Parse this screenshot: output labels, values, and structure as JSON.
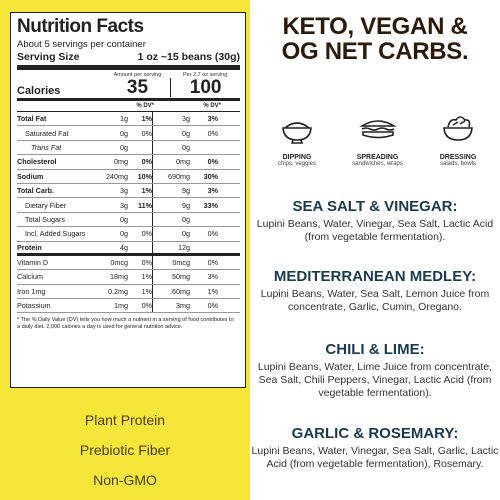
{
  "nutrition": {
    "title": "Nutrition Facts",
    "servings": "About 5 servings per container",
    "serving_size_label": "Serving Size",
    "serving_size_value": "1 oz ~15 beans (30g)",
    "amount_per_serving": "Amount per serving",
    "per_container": "Per 2.7 oz serving",
    "calories_label": "Calories",
    "calories_1": "35",
    "calories_2": "100",
    "dv_label_1": "% DV*",
    "dv_label_2": "% DV*",
    "rows": [
      {
        "name": "Total Fat",
        "a1": "1g",
        "p1": "1%",
        "a2": "3g",
        "p2": "3%"
      },
      {
        "name": "Saturated Fat",
        "a1": "0g",
        "p1": "0%",
        "a2": "0g",
        "p2": "0%"
      },
      {
        "name": "Trans Fat",
        "a1": "0g",
        "p1": "",
        "a2": "0g",
        "p2": ""
      },
      {
        "name": "Cholesterol",
        "a1": "0mg",
        "p1": "0%",
        "a2": "0mg",
        "p2": "0%"
      },
      {
        "name": "Sodium",
        "a1": "240mg",
        "p1": "10%",
        "a2": "690mg",
        "p2": "30%"
      },
      {
        "name": "Total Carb.",
        "a1": "3g",
        "p1": "1%",
        "a2": "9g",
        "p2": "3%"
      },
      {
        "name": "Dietary Fiber",
        "a1": "3g",
        "p1": "11%",
        "a2": "9g",
        "p2": "33%"
      },
      {
        "name": "Total Sugars",
        "a1": "0g",
        "p1": "",
        "a2": "0g",
        "p2": ""
      },
      {
        "name": "Incl. Added Sugars",
        "a1": "0g",
        "p1": "0%",
        "a2": "0g",
        "p2": "0%"
      },
      {
        "name": "Protein",
        "a1": "4g",
        "p1": "",
        "a2": "12g",
        "p2": ""
      },
      {
        "name": "Vitamin D",
        "a1": "0mcg",
        "p1": "0%",
        "a2": "0mcg",
        "p2": "0%"
      },
      {
        "name": "Calcium",
        "a1": "18mg",
        "p1": "1%",
        "a2": "50mg",
        "p2": "3%"
      },
      {
        "name": "Iron 1mg",
        "a1": "0.2mg",
        "p1": "1%",
        "a2": ".60mg",
        "p2": "1%"
      },
      {
        "name": "Potassium",
        "a1": "1mg",
        "p1": "0%",
        "a2": "3mg",
        "p2": "0%"
      }
    ],
    "footnote": "* The % Daily Value (DV) tells you how much a nutrient in a serving of food contributes to a daily diet. 2,000 calories a day is used for general nutrition advice."
  },
  "claims": [
    "Plant Protein",
    "Prebiotic Fiber",
    "Non-GMO"
  ],
  "headline": [
    "KETO, VEGAN &",
    "OG NET CARBS."
  ],
  "uses": [
    {
      "title": "DIPPING",
      "sub": "chips, veggies",
      "icon": "dip-bowl-icon"
    },
    {
      "title": "SPREADING",
      "sub": "sandwiches, wraps",
      "icon": "sandwich-icon"
    },
    {
      "title": "DRESSING",
      "sub": "salads, bowls",
      "icon": "salad-bowl-icon"
    }
  ],
  "flavors": [
    {
      "name": "SEA SALT & VINEGAR:",
      "ingredients": "Lupini Beans, Water, Vinegar, Sea Salt, Lactic Acid (from vegetable fermentation)."
    },
    {
      "name": "MEDITERRANEAN MEDLEY:",
      "ingredients": "Lupini Beans, Water, Sea Salt, Lemon Juice from concentrate, Garlic, Cumin, Oregano."
    },
    {
      "name": "CHILI & LIME:",
      "ingredients": "Lupini Beans, Water, Lime Juice from concentrate, Sea Salt, Chili Peppers, Vinegar, Lactic Acid (from vegetable fermentation)."
    },
    {
      "name": "GARLIC & ROSEMARY:",
      "ingredients": "Lupini Beans, Water, Vinegar, Sea Salt, Garlic, Lactic Acid (from vegetable fermentation), Rosemary."
    }
  ],
  "colors": {
    "yellow": "#f7e63a",
    "headline": "#2d1a0a",
    "flavor_title": "#1a3a52"
  }
}
